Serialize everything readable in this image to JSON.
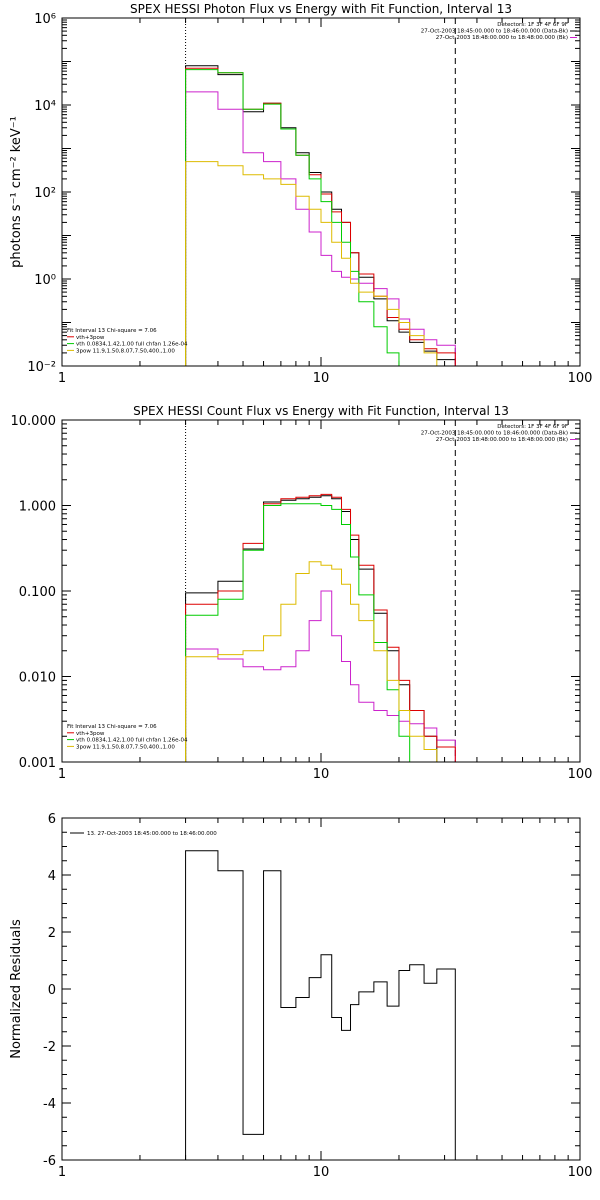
{
  "colors": {
    "black": "#000000",
    "red": "#dd0000",
    "green": "#00cc00",
    "yellow": "#ddbb00",
    "magenta": "#cc22cc",
    "background": "#ffffff"
  },
  "chart_data": [
    {
      "type": "line",
      "title": "SPEX HESSI Photon Flux vs Energy with Fit Function, Interval 13",
      "xlabel": "",
      "ylabel": "photons s⁻¹ cm⁻² keV⁻¹",
      "xscale": "log",
      "yscale": "log",
      "xlim": [
        1,
        100
      ],
      "ylim": [
        0.01,
        1000000
      ],
      "xticks": [
        1,
        10,
        100
      ],
      "xticklabels": [
        "1",
        "10",
        "100"
      ],
      "yticks": [
        0.01,
        1,
        100,
        10000,
        1000000
      ],
      "yticklabels": [
        "10⁻²",
        "10⁰",
        "10²",
        "10⁴",
        "10⁶"
      ],
      "vlines": [
        {
          "x": 3,
          "style": "dotted"
        },
        {
          "x": 33,
          "style": "dashed"
        }
      ],
      "header": [
        "Detectors: 1F 3F 4F 6F 9F",
        "27-Oct-2003 18:45:00.000 to 18:46:00.000 (Data-Bk)",
        "27-Oct-2003 18:48:00.000 to 18:48:00.000 (Bk)"
      ],
      "legend": [
        "Fit Interval 13   Chi-square = 7.06",
        "vth+3pow",
        "vth 0.0834,1.42,1.00  full chfan 1.26e-04",
        "3pow 11.9,1.50,8.07,7.50,400.,1.00"
      ],
      "legend_placement": "bottom-left",
      "edges": [
        3,
        4,
        5,
        6,
        7,
        8,
        9,
        10,
        11,
        12,
        13,
        14,
        16,
        18,
        20,
        22,
        25,
        28,
        33
      ],
      "series": [
        {
          "name": "Data-Bk",
          "color": "black",
          "values": [
            80000,
            50000,
            7000,
            11000,
            3000,
            800,
            280,
            100,
            40,
            20,
            4,
            1.1,
            0.35,
            0.11,
            0.06,
            0.035,
            0.022,
            0.014
          ]
        },
        {
          "name": "Bk",
          "color": "magenta",
          "values": [
            20000,
            8000,
            800,
            500,
            200,
            40,
            12,
            3.5,
            1.5,
            1.1,
            1.0,
            0.8,
            0.6,
            0.35,
            0.12,
            0.07,
            0.04,
            0.03
          ]
        },
        {
          "name": "vth+3pow",
          "color": "red",
          "values": [
            70000,
            55000,
            8000,
            11000,
            2800,
            700,
            250,
            90,
            35,
            20,
            4,
            1.3,
            0.4,
            0.13,
            0.07,
            0.04,
            0.025,
            0.02
          ]
        },
        {
          "name": "vth",
          "color": "green",
          "values": [
            65000,
            55000,
            8000,
            10500,
            2800,
            700,
            200,
            60,
            20,
            7,
            1.5,
            0.3,
            0.08,
            0.02,
            0.01,
            0.01,
            0.01,
            0.01
          ]
        },
        {
          "name": "3pow",
          "color": "yellow",
          "values": [
            500,
            400,
            250,
            200,
            150,
            80,
            40,
            20,
            7,
            3,
            0.8,
            0.5,
            0.4,
            0.2,
            0.1,
            0.05,
            0.02,
            0.01
          ]
        }
      ]
    },
    {
      "type": "line",
      "title": "SPEX HESSI Count Flux vs Energy with Fit Function, Interval 13",
      "xlabel": "",
      "ylabel": "",
      "xscale": "log",
      "yscale": "log",
      "xlim": [
        1,
        100
      ],
      "ylim": [
        0.001,
        10
      ],
      "xticks": [
        1,
        10,
        100
      ],
      "xticklabels": [
        "1",
        "10",
        "100"
      ],
      "yticks": [
        0.001,
        0.01,
        0.1,
        1,
        10
      ],
      "yticklabels": [
        "0.001",
        "0.010",
        "0.100",
        "1.000",
        "10.000"
      ],
      "vlines": [
        {
          "x": 3,
          "style": "dotted"
        },
        {
          "x": 33,
          "style": "dashed"
        }
      ],
      "header": [
        "Detectors: 1F 3F 4F 6F 9F",
        "27-Oct-2003 18:45:00.000 to 18:46:00.000 (Data-Bk)",
        "27-Oct-2003 18:48:00.000 to 18:48:00.000 (Bk)"
      ],
      "legend": [
        "Fit Interval 13   Chi-square = 7.06",
        "vth+3pow",
        "vth 0.0834,1.42,1.00  full chfan 1.26e-04",
        "3pow 11.9,1.50,8.07,7.50,400.,1.00"
      ],
      "legend_placement": "bottom-left",
      "edges": [
        3,
        4,
        5,
        6,
        7,
        8,
        9,
        10,
        11,
        12,
        13,
        14,
        16,
        18,
        20,
        22,
        25,
        28,
        33
      ],
      "series": [
        {
          "name": "Data-Bk",
          "color": "black",
          "values": [
            0.095,
            0.13,
            0.31,
            1.1,
            1.15,
            1.2,
            1.25,
            1.3,
            1.2,
            0.85,
            0.4,
            0.18,
            0.055,
            0.02,
            0.008,
            0.004,
            0.002,
            0.001
          ]
        },
        {
          "name": "Bk",
          "color": "magenta",
          "values": [
            0.021,
            0.016,
            0.013,
            0.012,
            0.013,
            0.02,
            0.045,
            0.1,
            0.03,
            0.015,
            0.008,
            0.005,
            0.004,
            0.0035,
            0.003,
            0.0028,
            0.0025,
            0.0018
          ]
        },
        {
          "name": "vth+3pow",
          "color": "red",
          "values": [
            0.07,
            0.1,
            0.36,
            1.05,
            1.2,
            1.25,
            1.3,
            1.35,
            1.25,
            0.9,
            0.45,
            0.2,
            0.06,
            0.022,
            0.009,
            0.004,
            0.002,
            0.0015
          ]
        },
        {
          "name": "vth",
          "color": "green",
          "values": [
            0.052,
            0.08,
            0.3,
            1.0,
            1.05,
            1.05,
            1.05,
            1.0,
            0.9,
            0.6,
            0.25,
            0.09,
            0.025,
            0.007,
            0.002,
            0.001,
            0.001,
            0.001
          ]
        },
        {
          "name": "3pow",
          "color": "yellow",
          "values": [
            0.017,
            0.018,
            0.02,
            0.03,
            0.07,
            0.16,
            0.22,
            0.2,
            0.18,
            0.12,
            0.07,
            0.045,
            0.02,
            0.009,
            0.004,
            0.002,
            0.0014,
            0.001
          ]
        }
      ]
    },
    {
      "type": "line",
      "title": "",
      "xlabel": "",
      "ylabel": "Normalized Residuals",
      "xscale": "log",
      "yscale": "linear",
      "xlim": [
        1,
        100
      ],
      "ylim": [
        -6,
        6
      ],
      "xticks": [
        1,
        10,
        100
      ],
      "xticklabels": [
        "1",
        "10",
        "100"
      ],
      "yticks": [
        -6,
        -4,
        -2,
        0,
        2,
        4,
        6
      ],
      "yticklabels": [
        "-6",
        "-4",
        "-2",
        "0",
        "2",
        "4",
        "6"
      ],
      "legend": [
        "13. 27-Oct-2003 18:45:00.000 to 18:46:00.000"
      ],
      "legend_placement": "top-left",
      "edges": [
        3,
        4,
        5,
        6,
        7,
        8,
        9,
        10,
        11,
        12,
        13,
        14,
        16,
        18,
        20,
        22,
        25,
        28,
        33
      ],
      "series": [
        {
          "name": "",
          "color": "black",
          "values": [
            4.85,
            4.15,
            -5.1,
            4.15,
            -0.65,
            -0.3,
            0.4,
            1.2,
            -1.0,
            -1.45,
            -0.55,
            -0.1,
            0.25,
            -0.6,
            0.65,
            0.85,
            0.2,
            0.7
          ]
        }
      ]
    }
  ]
}
